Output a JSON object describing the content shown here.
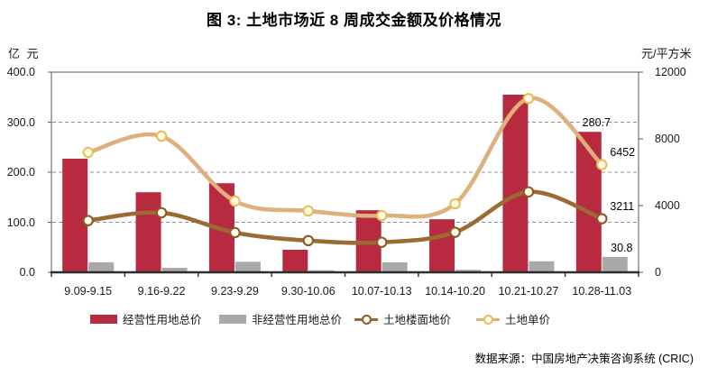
{
  "title": "图 3: 土地市场近 8 周成交金额及价格情况",
  "source": "数据来源：中国房地产决策咨询系统 (CRIC)",
  "left_axis": {
    "unit": "亿 元",
    "min": 0,
    "max": 400,
    "ticks": [
      "400.0",
      "300.0",
      "200.0",
      "100.0",
      "0.0"
    ]
  },
  "right_axis": {
    "unit": "元/平方米",
    "min": 0,
    "max": 12000,
    "ticks": [
      "12000",
      "8000",
      "4000",
      "0"
    ]
  },
  "chart_data": {
    "type": "bar",
    "subtype": "combo bar+smooth-line, dual axis",
    "categories": [
      "9.09-9.15",
      "9.16-9.22",
      "9.23-9.29",
      "9.30-10.06",
      "10.07-10.13",
      "10.14-10.20",
      "10.21-10.27",
      "10.28-11.03"
    ],
    "series": [
      {
        "name": "经营性用地总价",
        "type": "bar",
        "axis": "left",
        "color": "#B72A40",
        "values": [
          227,
          160,
          178,
          45,
          124,
          106,
          355,
          280.7
        ],
        "last_label": "280.7"
      },
      {
        "name": "非经营性用地总价",
        "type": "bar",
        "axis": "left",
        "color": "#A9A9A9",
        "values": [
          20,
          9,
          21,
          4,
          20,
          5,
          22,
          30.8
        ],
        "last_label": "30.8"
      },
      {
        "name": "土地楼面地价",
        "type": "line",
        "axis": "right",
        "color": "#9C6B33",
        "marker_fill": "#FFFDF0",
        "marker_ring": "#8A5B26",
        "values": [
          3100,
          3570,
          2380,
          1900,
          1800,
          2400,
          4820,
          3211
        ],
        "last_label": "3211"
      },
      {
        "name": "土地单价",
        "type": "line",
        "axis": "right",
        "color": "#DDB07E",
        "marker_fill": "#FFFBE8",
        "marker_ring": "#E9BD5A",
        "values": [
          7190,
          8160,
          4270,
          3680,
          3400,
          4110,
          10420,
          6452
        ],
        "last_label": "6452"
      }
    ],
    "title": "图 3: 土地市场近 8 周成交金额及价格情况",
    "xlabel": "",
    "ylabel_left": "亿 元",
    "ylabel_right": "元/平方米",
    "ylim_left": [
      0,
      400
    ],
    "ylim_right": [
      0,
      12000
    ],
    "grid": "horizontal dashed at 100/200/300 (left axis)",
    "legend_position": "bottom"
  },
  "colors": {
    "bar_primary": "#B72A40",
    "bar_secondary": "#A9A9A9",
    "line_floor_price": "#9C6B33",
    "line_unit_price": "#DDB07E",
    "gridline": "#909090",
    "frame": "#595959",
    "axis_line": "#2E2E2E",
    "text": "#1A1A1A"
  }
}
